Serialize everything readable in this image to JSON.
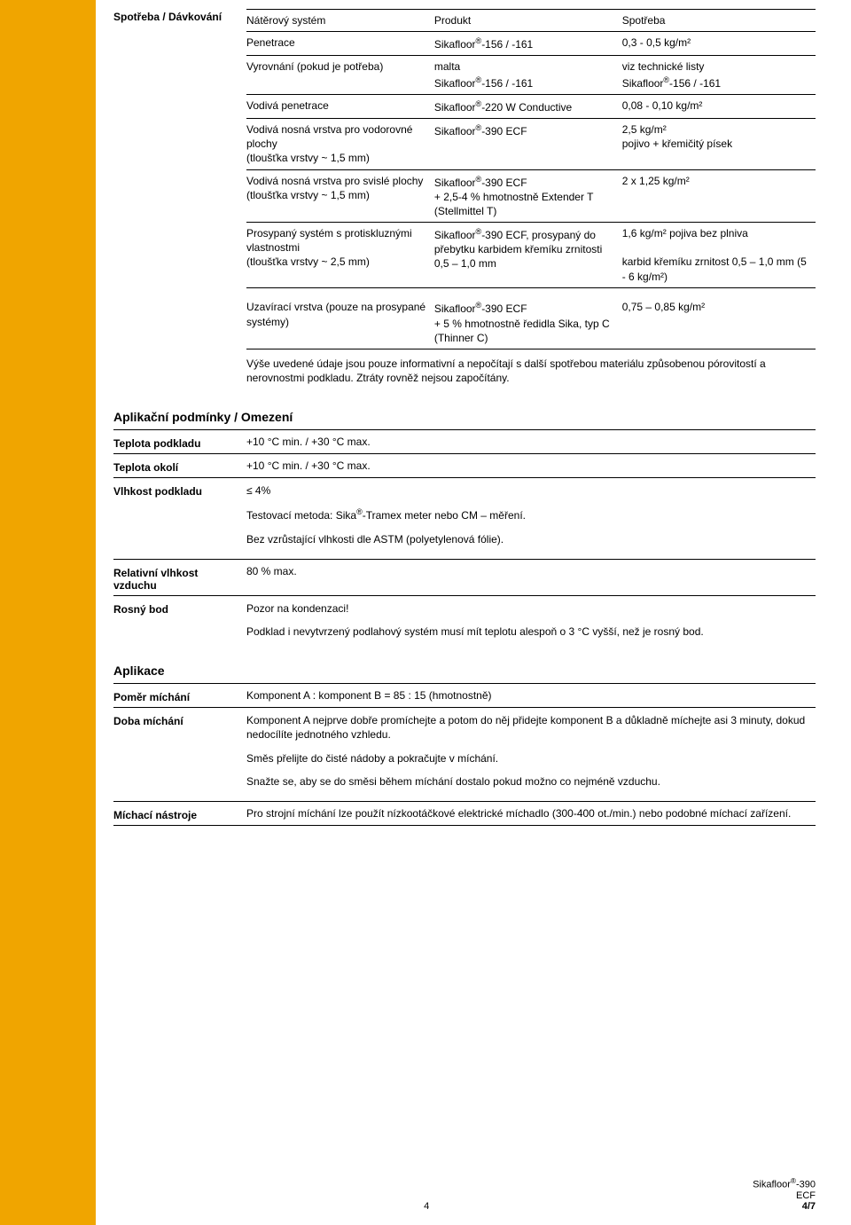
{
  "consumption": {
    "heading": "Spotřeba / Dávkování",
    "header": [
      "Nátěrový systém",
      "Produkt",
      "Spotřeba"
    ],
    "rows": [
      {
        "c1": "Penetrace",
        "c2": "Sikafloor®-156 / -161",
        "c3": "0,3 - 0,5 kg/m²"
      },
      {
        "c1": "Vyrovnání (pokud je potřeba)",
        "c2": "malta\nSikafloor®-156 / -161",
        "c3": "viz technické listy\nSikafloor®-156 / -161"
      },
      {
        "c1": "Vodivá penetrace",
        "c2": "Sikafloor®-220 W Conductive",
        "c3": "0,08 - 0,10 kg/m²"
      },
      {
        "c1": "Vodivá nosná vrstva pro vodorovné plochy\n(tloušťka vrstvy ~ 1,5 mm)",
        "c2": "Sikafloor®-390 ECF",
        "c3": "2,5 kg/m²\npojivo + křemičitý písek"
      },
      {
        "c1": "Vodivá nosná vrstva pro svislé plochy (tloušťka vrstvy ~ 1,5 mm)",
        "c2": "Sikafloor®-390 ECF\n+ 2,5-4 % hmotnostně Extender T (Stellmittel T)",
        "c3": "2 x 1,25 kg/m²"
      },
      {
        "c1": "Prosypaný systém s protiskluznými vlastnostmi\n(tloušťka vrstvy ~ 2,5 mm)",
        "c2": "Sikafloor®-390 ECF, prosypaný do přebytku karbidem křemíku zrnitosti\n0,5 – 1,0 mm",
        "c3": "1,6 kg/m² pojiva bez plniva\n\nkarbid křemíku zrnitost 0,5 – 1,0 mm (5 - 6 kg/m²)"
      },
      {
        "c1": "Uzavírací vrstva (pouze na prosypané systémy)",
        "c2": "Sikafloor®-390 ECF\n+ 5 % hmotnostně ředidla Sika, typ C (Thinner C)",
        "c3": "0,75 – 0,85 kg/m²"
      }
    ],
    "note_below": "Výše uvedené údaje jsou pouze informativní a nepočítají s další spotřebou materiálu způsobenou pórovitostí a nerovnostmi podkladu. Ztráty rovněž nejsou započítány."
  },
  "app_conditions_heading": "Aplikační podmínky / Omezení",
  "substrate_temp": {
    "label": "Teplota podkladu",
    "value": "+10 °C min. / +30 °C max."
  },
  "ambient_temp": {
    "label": "Teplota okolí",
    "value": "+10 °C min. / +30 °C max."
  },
  "substrate_moisture": {
    "label": "Vlhkost podkladu",
    "value": "≤ 4%",
    "line2": "Testovací metoda: Sika®-Tramex meter nebo CM – měření.",
    "line3": "Bez vzrůstající vlhkosti dle ASTM (polyetylenová fólie)."
  },
  "rel_humidity": {
    "label": "Relativní vlhkost vzduchu",
    "value": "80 % max."
  },
  "dew_point": {
    "label": "Rosný bod",
    "value": "Pozor na kondenzaci!",
    "line2": "Podklad i nevytvrzený podlahový systém musí mít teplotu alespoň o 3 °C vyšší, než je rosný bod."
  },
  "application_heading": "Aplikace",
  "mix_ratio": {
    "label": "Poměr míchání",
    "value": "Komponent A : komponent B = 85 : 15 (hmotnostně)"
  },
  "mix_time": {
    "label": "Doba míchání",
    "p1": "Komponent A nejprve dobře promíchejte a potom do něj přidejte komponent B a důkladně míchejte asi 3 minuty, dokud nedocílíte jednotného vzhledu.",
    "p2": "Směs přelijte do čisté nádoby a pokračujte v míchání.",
    "p3": "Snažte se, aby se do směsi během míchání dostalo pokud možno co nejméně vzduchu."
  },
  "mix_tools": {
    "label": "Míchací nástroje",
    "value": "Pro strojní míchání lze použít nízkootáčkové elektrické míchadlo (300-400 ot./min.) nebo podobné míchací zařízení."
  },
  "footer": {
    "page_num": "4",
    "product": "Sikafloor®-390 ECF",
    "page_of": "4/7"
  },
  "colors": {
    "sidebar": "#f0a500"
  }
}
